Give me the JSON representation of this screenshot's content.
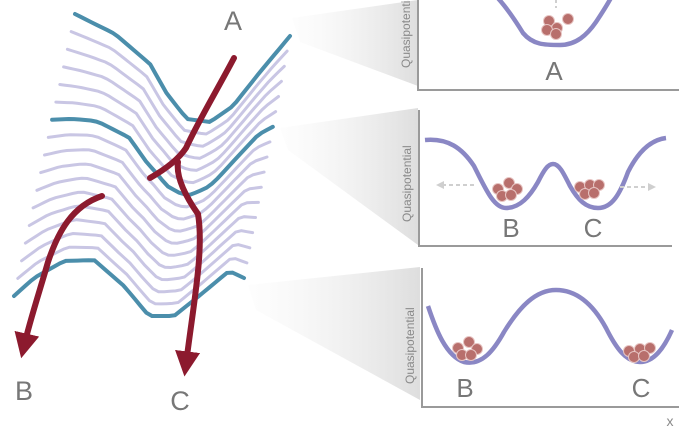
{
  "landscape": {
    "start_label": "A",
    "end_labels": [
      "B",
      "C"
    ]
  },
  "panels": [
    {
      "ylabel": "Quasipotential",
      "wells": [
        "A"
      ]
    },
    {
      "ylabel": "Quasipotential",
      "wells": [
        "B",
        "C"
      ]
    },
    {
      "ylabel": "Quasipotential",
      "wells": [
        "B",
        "C"
      ]
    }
  ],
  "x_axis_label": "x",
  "colors": {
    "trajectory": "#8c1a2e",
    "landscape_edge": "#4b8eab",
    "landscape_contour": "#c9c6e4",
    "potential_curve": "#8a87c4",
    "cells": "#b86f6c",
    "axes": "#9a9a9a",
    "projection_cone": "#e4e4e4"
  }
}
